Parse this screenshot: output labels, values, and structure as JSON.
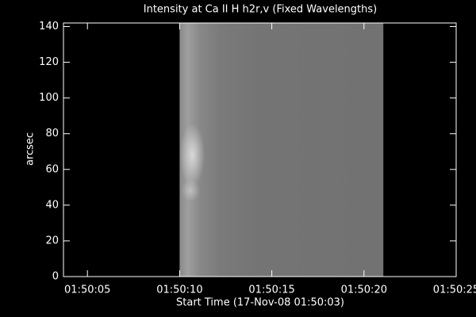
{
  "chart_data": {
    "type": "image",
    "title": "Intensity at Ca II H h2r,v (Fixed Wavelengths)",
    "xlabel": "Start Time (17-Nov-08 01:50:03)",
    "ylabel": "arcsec",
    "xlim": [
      3.7,
      25
    ],
    "xticks": [
      {
        "value": 5,
        "label": "01:50:05"
      },
      {
        "value": 10,
        "label": "01:50:10"
      },
      {
        "value": 15,
        "label": "01:50:15"
      },
      {
        "value": 20,
        "label": "01:50:20"
      },
      {
        "value": 25,
        "label": "01:50:25"
      }
    ],
    "ylim": [
      0,
      142
    ],
    "yticks": [
      0,
      20,
      40,
      60,
      80,
      100,
      120,
      140
    ],
    "image_x": [
      10,
      21.05
    ],
    "image_y": [
      0,
      142
    ]
  }
}
